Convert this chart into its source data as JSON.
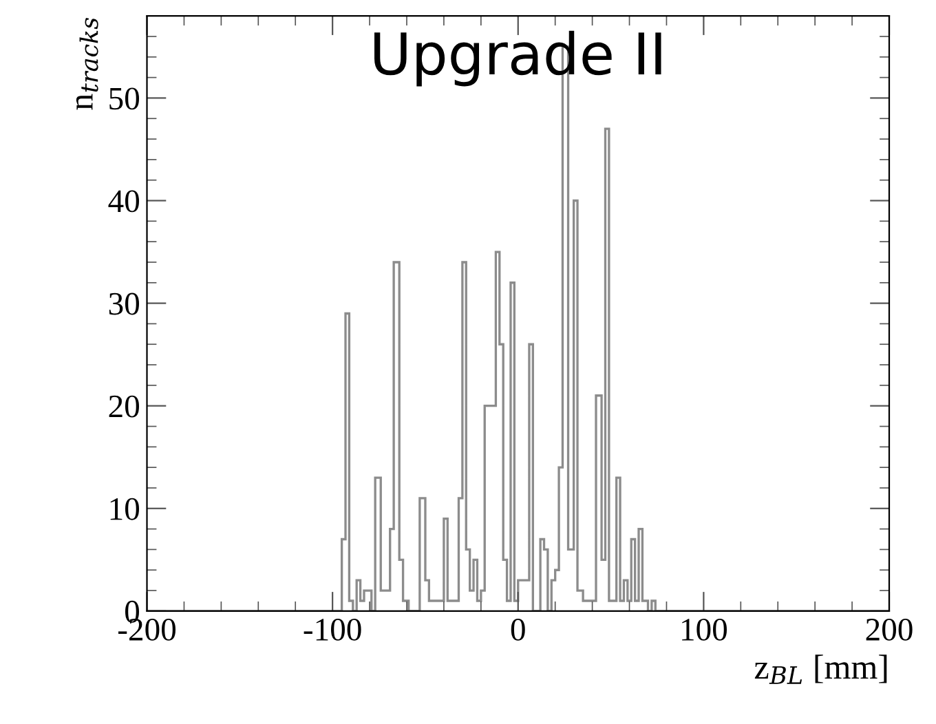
{
  "chart_data": {
    "type": "histogram",
    "title": "Upgrade II",
    "xlabel": "z$_{BL}$ [mm]",
    "ylabel": "n$_{tracks}$",
    "bins": [
      -200,
      -95,
      -93,
      -91,
      -89,
      -87,
      -85,
      -83,
      -79,
      -77,
      -74,
      -69,
      -67,
      -64,
      -62,
      -59,
      -53,
      -50,
      -48,
      -40,
      -38,
      -32,
      -30,
      -28,
      -26,
      -24,
      -22,
      -20,
      -18,
      -12,
      -10,
      -8,
      -6,
      -4,
      -2,
      0,
      6,
      8,
      12,
      14,
      16,
      18,
      20,
      22,
      24,
      27,
      30,
      32,
      35,
      42,
      45,
      47,
      49,
      53,
      55,
      57,
      59,
      61,
      63,
      65,
      67,
      70,
      72,
      74,
      200
    ],
    "values": [
      0,
      7,
      29,
      1,
      0,
      3,
      1,
      2,
      0,
      13,
      2,
      8,
      34,
      5,
      1,
      0,
      11,
      3,
      1,
      9,
      1,
      11,
      34,
      6,
      2,
      5,
      1,
      2,
      20,
      35,
      26,
      5,
      1,
      32,
      1,
      3,
      26,
      0,
      7,
      6,
      0,
      3,
      4,
      14,
      55,
      6,
      40,
      2,
      1,
      21,
      5,
      47,
      1,
      13,
      1,
      3,
      1,
      7,
      1,
      8,
      1,
      0,
      1,
      0
    ],
    "color": "#8c8c8c",
    "xlim": [
      -200,
      200
    ],
    "ylim": [
      0,
      58
    ],
    "xticks": [
      -200,
      -100,
      0,
      100,
      200
    ],
    "yticks": [
      0,
      10,
      20,
      30,
      40,
      50
    ],
    "grid": false,
    "legend": false
  }
}
